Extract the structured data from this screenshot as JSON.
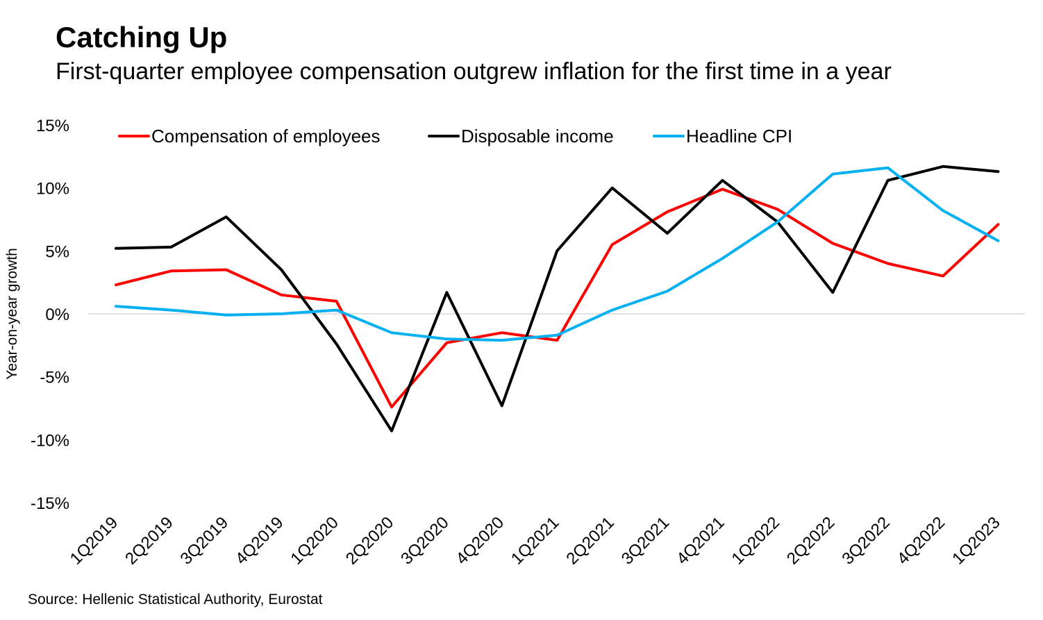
{
  "header": {
    "title": "Catching Up",
    "subtitle": "First-quarter employee compensation outgrew inflation for the first time in a year"
  },
  "footer": {
    "source": "Source: Hellenic Statistical Authority, Eurostat"
  },
  "chart_data": {
    "type": "line",
    "title": "Catching Up",
    "subtitle": "First-quarter employee compensation outgrew inflation for the first time in a year",
    "xlabel": "",
    "ylabel": "Year-on-year growth",
    "ylim": [
      -15,
      15
    ],
    "yticks": [
      15,
      10,
      5,
      0,
      -5,
      -10,
      -15
    ],
    "ytick_labels": [
      "15%",
      "10%",
      "5%",
      "0%",
      "-5%",
      "-10%",
      "-15%"
    ],
    "grid": false,
    "zero_line": true,
    "legend_position": "top",
    "categories": [
      "1Q2019",
      "2Q2019",
      "3Q2019",
      "4Q2019",
      "1Q2020",
      "2Q2020",
      "3Q2020",
      "4Q2020",
      "1Q2021",
      "2Q2021",
      "3Q2021",
      "4Q2021",
      "1Q2022",
      "2Q2022",
      "3Q2022",
      "4Q2022",
      "1Q2023"
    ],
    "series": [
      {
        "name": "Compensation of employees",
        "color": "#ff0000",
        "values": [
          2.3,
          3.4,
          3.5,
          1.5,
          1.0,
          -7.4,
          -2.3,
          -1.5,
          -2.1,
          5.5,
          8.1,
          9.9,
          8.3,
          5.6,
          4.0,
          3.0,
          7.1
        ]
      },
      {
        "name": "Disposable income",
        "color": "#000000",
        "values": [
          5.2,
          5.3,
          7.7,
          3.5,
          -2.4,
          -9.3,
          1.7,
          -7.3,
          5.0,
          10.0,
          6.4,
          10.6,
          7.3,
          1.7,
          10.6,
          11.7,
          11.3
        ]
      },
      {
        "name": "Headline CPI",
        "color": "#00b0f0",
        "values": [
          0.6,
          0.3,
          -0.1,
          0.0,
          0.3,
          -1.5,
          -2.0,
          -2.1,
          -1.7,
          0.3,
          1.8,
          4.4,
          7.3,
          11.1,
          11.6,
          8.2,
          5.8
        ]
      }
    ]
  }
}
